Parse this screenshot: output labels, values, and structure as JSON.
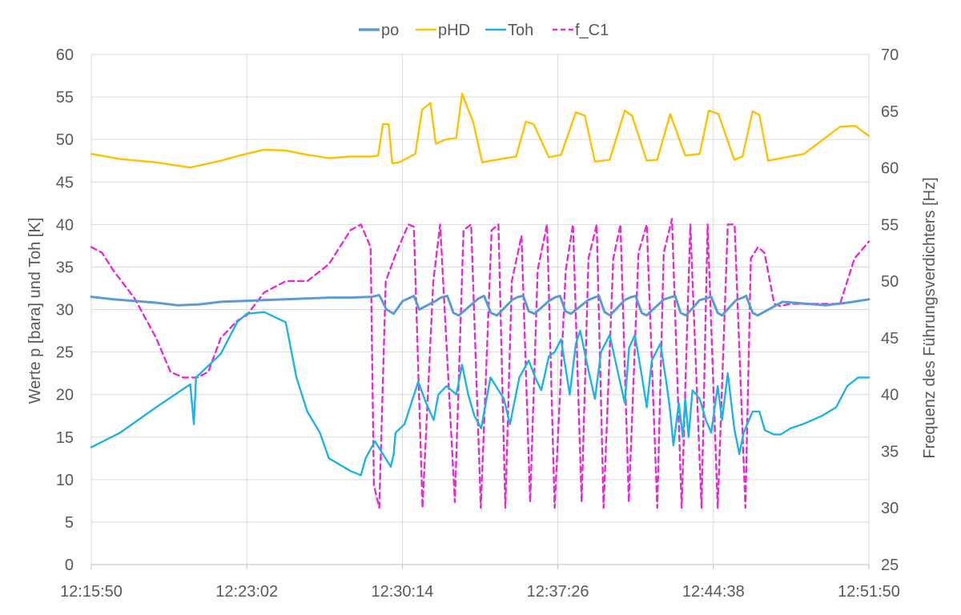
{
  "chart_data": {
    "type": "line",
    "title": "",
    "legend_position": "top",
    "grid": true,
    "x_axis": {
      "ticks": [
        "12:15:50",
        "12:23:02",
        "12:30:14",
        "12:37:26",
        "12:44:38",
        "12:51:50"
      ],
      "range_seconds_from_start": [
        0,
        2160
      ]
    },
    "y_axis_left": {
      "label": "Werte p [bara] und Toh [K]",
      "range": [
        0,
        60
      ],
      "ticks": [
        "0",
        "5",
        "10",
        "15",
        "20",
        "25",
        "30",
        "35",
        "40",
        "45",
        "50",
        "55",
        "60"
      ]
    },
    "y_axis_right": {
      "label": "Frequenz des Führungsverdichters [Hz]",
      "range": [
        25,
        70
      ],
      "ticks": [
        "25",
        "30",
        "35",
        "40",
        "45",
        "50",
        "55",
        "60",
        "65",
        "70"
      ]
    },
    "series": [
      {
        "name": "po",
        "axis": "left",
        "color": "#5B9BD5",
        "dash": "solid",
        "x": [
          "12:15:50",
          "12:16:50",
          "12:17:50",
          "12:18:50",
          "12:19:50",
          "12:20:50",
          "12:21:50",
          "12:22:50",
          "12:23:50",
          "12:24:50",
          "12:25:50",
          "12:26:50",
          "12:27:50",
          "12:28:50",
          "12:29:10",
          "12:29:30",
          "12:29:50",
          "12:30:15",
          "12:30:31",
          "12:30:46",
          "12:31:01",
          "12:31:46",
          "12:32:01",
          "12:32:19",
          "12:32:36",
          "12:32:51",
          "12:33:32",
          "12:33:46",
          "12:34:01",
          "12:34:20",
          "12:34:37",
          "12:35:21",
          "12:35:37",
          "12:35:50",
          "12:36:05",
          "12:36:21",
          "12:37:01",
          "12:37:17",
          "12:37:32",
          "12:37:47",
          "12:38:02",
          "12:38:50",
          "12:39:07",
          "12:39:20",
          "12:39:36",
          "12:39:51",
          "12:40:31",
          "12:40:46",
          "12:41:02",
          "12:41:19",
          "12:41:32",
          "12:42:21",
          "12:42:37",
          "12:42:52",
          "12:43:07",
          "12:43:22",
          "12:44:00",
          "12:44:17",
          "12:44:32",
          "12:44:50",
          "12:45:02",
          "12:45:41",
          "12:46:00",
          "12:46:09",
          "12:46:27",
          "12:46:41",
          "12:47:50",
          "12:48:50",
          "12:49:50",
          "12:50:50",
          "12:51:50"
        ],
        "y": [
          31.5,
          31.2,
          31.0,
          30.8,
          30.5,
          30.6,
          30.9,
          31.0,
          31.1,
          31.2,
          31.3,
          31.4,
          31.4,
          31.5,
          31.7,
          30.0,
          29.5,
          31.0,
          31.3,
          31.6,
          30.0,
          31.0,
          31.4,
          31.6,
          29.6,
          29.3,
          30.8,
          31.3,
          31.6,
          29.6,
          29.3,
          31.2,
          31.5,
          31.6,
          29.8,
          29.5,
          31.0,
          31.4,
          31.6,
          29.8,
          29.5,
          31.1,
          31.4,
          31.6,
          29.7,
          29.3,
          31.1,
          31.4,
          31.6,
          29.6,
          29.3,
          31.2,
          31.4,
          31.6,
          29.6,
          29.3,
          31.1,
          31.3,
          31.5,
          29.6,
          29.3,
          31.1,
          31.4,
          31.6,
          29.6,
          29.3,
          30.9,
          30.7,
          30.5,
          30.8,
          31.2
        ]
      },
      {
        "name": "pHD",
        "axis": "left",
        "color": "#FFC000",
        "dash": "solid",
        "x": [
          "12:15:50",
          "12:17:10",
          "12:18:50",
          "12:20:25",
          "12:21:50",
          "12:22:50",
          "12:23:50",
          "12:24:50",
          "12:25:50",
          "12:26:50",
          "12:27:50",
          "12:28:50",
          "12:29:07",
          "12:29:20",
          "12:29:36",
          "12:29:46",
          "12:30:05",
          "12:30:50",
          "12:31:09",
          "12:31:32",
          "12:31:47",
          "12:32:15",
          "12:32:44",
          "12:33:00",
          "12:33:31",
          "12:33:56",
          "12:34:20",
          "12:35:30",
          "12:35:57",
          "12:36:19",
          "12:37:01",
          "12:37:35",
          "12:38:16",
          "12:38:41",
          "12:39:09",
          "12:39:50",
          "12:40:32",
          "12:40:52",
          "12:41:33",
          "12:42:02",
          "12:42:38",
          "12:43:20",
          "12:44:00",
          "12:44:25",
          "12:44:52",
          "12:45:36",
          "12:45:59",
          "12:46:27",
          "12:46:46",
          "12:47:10",
          "12:48:50",
          "12:50:30",
          "12:51:12",
          "12:51:50"
        ],
        "y": [
          48.3,
          47.7,
          47.3,
          46.7,
          47.5,
          48.2,
          48.8,
          48.7,
          48.2,
          47.8,
          48.0,
          48.0,
          48.1,
          51.8,
          51.8,
          47.2,
          47.3,
          48.3,
          53.5,
          54.3,
          49.5,
          50.0,
          50.2,
          55.4,
          52.0,
          47.3,
          47.5,
          48.0,
          52.1,
          51.8,
          47.9,
          48.2,
          53.2,
          52.8,
          47.4,
          47.6,
          53.4,
          52.8,
          47.5,
          47.6,
          53.0,
          48.1,
          48.3,
          53.4,
          53.0,
          47.6,
          48.0,
          53.3,
          52.9,
          47.5,
          48.3,
          51.5,
          51.6,
          50.4
        ]
      },
      {
        "name": "Toh",
        "axis": "left",
        "color": "#1EB2E6",
        "dash": "solid",
        "x": [
          "12:15:50",
          "12:17:10",
          "12:18:50",
          "12:20:25",
          "12:20:35",
          "12:20:41",
          "12:21:50",
          "12:22:35",
          "12:23:02",
          "12:23:50",
          "12:24:50",
          "12:25:20",
          "12:25:50",
          "12:26:25",
          "12:26:50",
          "12:27:50",
          "12:28:19",
          "12:28:32",
          "12:28:58",
          "12:29:20",
          "12:29:42",
          "12:29:50",
          "12:29:55",
          "12:30:20",
          "12:30:58",
          "12:31:20",
          "12:31:41",
          "12:31:54",
          "12:32:17",
          "12:32:44",
          "12:33:00",
          "12:33:17",
          "12:33:34",
          "12:33:53",
          "12:34:19",
          "12:34:56",
          "12:35:13",
          "12:35:39",
          "12:36:05",
          "12:36:23",
          "12:36:40",
          "12:37:01",
          "12:37:17",
          "12:37:35",
          "12:37:59",
          "12:38:16",
          "12:38:28",
          "12:38:50",
          "12:39:09",
          "12:39:26",
          "12:39:50",
          "12:40:16",
          "12:40:32",
          "12:40:44",
          "12:41:00",
          "12:41:20",
          "12:41:33",
          "12:41:47",
          "12:42:11",
          "12:42:29",
          "12:42:38",
          "12:42:47",
          "12:43:02",
          "12:43:13",
          "12:43:20",
          "12:43:29",
          "12:43:40",
          "12:44:00",
          "12:44:17",
          "12:44:32",
          "12:44:50",
          "12:45:02",
          "12:45:18",
          "12:45:36",
          "12:45:50",
          "12:46:02",
          "12:46:27",
          "12:46:46",
          "12:47:01",
          "12:47:27",
          "12:47:45",
          "12:48:11",
          "12:48:46",
          "12:49:40",
          "12:50:19",
          "12:50:50",
          "12:51:20",
          "12:51:50"
        ],
        "y": [
          13.8,
          15.5,
          18.5,
          21.2,
          16.5,
          22.0,
          24.8,
          28.5,
          29.5,
          29.7,
          28.5,
          22.0,
          18.0,
          15.5,
          12.5,
          11.0,
          10.5,
          12.5,
          14.5,
          13.0,
          11.5,
          13.0,
          15.5,
          16.5,
          21.5,
          19.0,
          17.0,
          20.0,
          21.0,
          20.0,
          23.5,
          20.0,
          17.5,
          16.0,
          22.0,
          19.5,
          16.5,
          22.0,
          24.0,
          22.0,
          20.5,
          24.5,
          25.0,
          26.5,
          20.0,
          26.0,
          27.5,
          23.0,
          19.5,
          25.0,
          27.0,
          22.0,
          19.0,
          25.5,
          27.0,
          22.0,
          18.5,
          24.0,
          26.0,
          21.0,
          18.0,
          14.0,
          19.0,
          15.0,
          19.5,
          15.0,
          20.5,
          19.5,
          17.0,
          15.5,
          21.0,
          17.0,
          22.5,
          16.0,
          13.0,
          15.5,
          18.0,
          18.0,
          15.8,
          15.3,
          15.3,
          16.0,
          16.5,
          17.5,
          18.5,
          21.0,
          22.0,
          22.0
        ]
      },
      {
        "name": "f_C1",
        "axis": "right",
        "color": "#E62CD1",
        "dash": "dashed",
        "x": [
          "12:15:50",
          "12:16:20",
          "12:16:50",
          "12:17:50",
          "12:18:50",
          "12:19:30",
          "12:20:05",
          "12:20:45",
          "12:21:15",
          "12:21:50",
          "12:22:35",
          "12:23:02",
          "12:23:50",
          "12:24:50",
          "12:25:50",
          "12:26:50",
          "12:27:50",
          "12:28:19",
          "12:28:46",
          "12:28:55",
          "12:29:10",
          "12:29:28",
          "12:29:57",
          "12:30:31",
          "12:30:46",
          "12:31:10",
          "12:31:40",
          "12:31:59",
          "12:32:40",
          "12:33:04",
          "12:33:25",
          "12:33:52",
          "12:34:22",
          "12:34:41",
          "12:35:00",
          "12:35:18",
          "12:35:45",
          "12:36:09",
          "12:36:30",
          "12:36:56",
          "12:37:17",
          "12:37:48",
          "12:38:08",
          "12:38:32",
          "12:38:51",
          "12:39:14",
          "12:39:33",
          "12:40:00",
          "12:40:20",
          "12:40:43",
          "12:41:10",
          "12:41:33",
          "12:42:02",
          "12:42:20",
          "12:42:43",
          "12:43:10",
          "12:43:34",
          "12:44:05",
          "12:44:22",
          "12:44:50",
          "12:45:18",
          "12:45:37",
          "12:46:07",
          "12:46:22",
          "12:46:42",
          "12:47:00",
          "12:47:27",
          "12:47:45",
          "12:48:11",
          "12:48:50",
          "12:50:30",
          "12:51:10",
          "12:51:50"
        ],
        "y": [
          53.0,
          52.5,
          51.0,
          48.5,
          45.0,
          42.0,
          41.5,
          41.5,
          42.0,
          45.0,
          46.5,
          47.0,
          49.0,
          50.0,
          50.0,
          51.5,
          54.5,
          55.0,
          53.0,
          32.0,
          30.0,
          50.0,
          52.5,
          55.0,
          54.8,
          30.0,
          50.0,
          55.0,
          30.5,
          54.5,
          55.0,
          30.0,
          54.5,
          55.0,
          30.0,
          50.0,
          54.0,
          30.5,
          51.0,
          55.0,
          30.0,
          51.0,
          55.0,
          30.5,
          52.0,
          55.0,
          30.0,
          52.0,
          55.0,
          30.5,
          52.5,
          55.0,
          30.0,
          52.5,
          55.5,
          30.0,
          55.0,
          30.0,
          55.0,
          30.0,
          55.0,
          55.0,
          30.0,
          52.0,
          53.0,
          52.5,
          48.0,
          47.8,
          48.0,
          48.0,
          48.0,
          52.0,
          53.5
        ]
      }
    ]
  }
}
